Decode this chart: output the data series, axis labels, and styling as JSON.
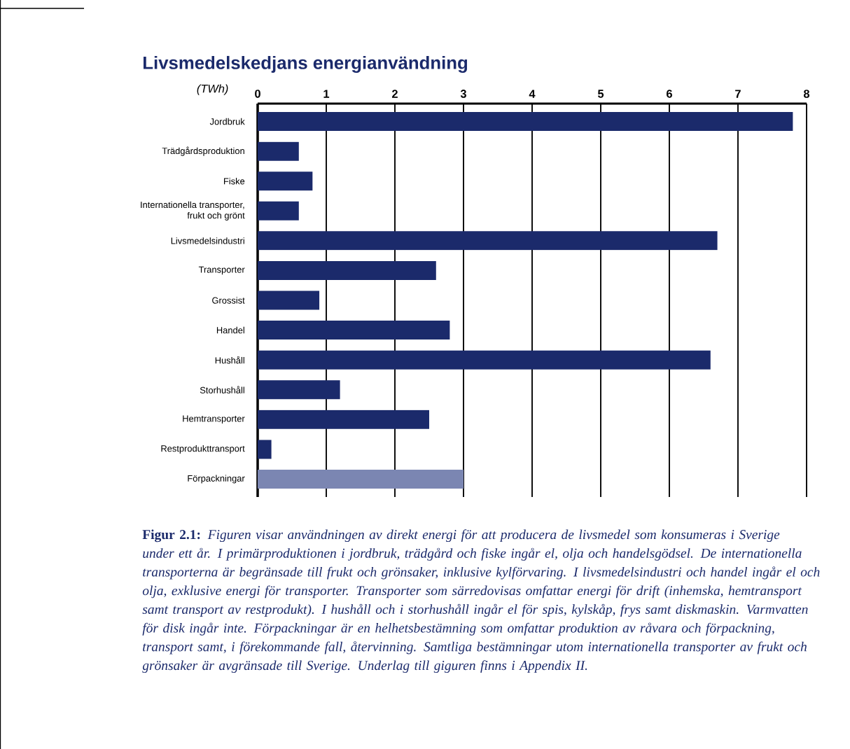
{
  "chart_data": {
    "type": "bar",
    "orientation": "horizontal",
    "title": "Livsmedelskedjans energianvändning",
    "xlabel": "(TWh)",
    "categories": [
      "Jordbruk",
      "Trädgårdsproduktion",
      "Fiske",
      "Internationella transporter, frukt och grönt",
      "Livsmedelsindustri",
      "Transporter",
      "Grossist",
      "Handel",
      "Hushåll",
      "Storhushåll",
      "Hemtransporter",
      "Restprodukttransport",
      "Förpackningar"
    ],
    "values": [
      7.8,
      0.6,
      0.8,
      0.6,
      6.7,
      2.6,
      0.9,
      2.8,
      6.6,
      1.2,
      2.5,
      0.2,
      3.0
    ],
    "colors": [
      "#1b2a6b",
      "#1b2a6b",
      "#1b2a6b",
      "#1b2a6b",
      "#1b2a6b",
      "#1b2a6b",
      "#1b2a6b",
      "#1b2a6b",
      "#1b2a6b",
      "#1b2a6b",
      "#1b2a6b",
      "#1b2a6b",
      "#7b86b2"
    ],
    "xlim": [
      0,
      8
    ],
    "xticks": [
      0,
      1,
      2,
      3,
      4,
      5,
      6,
      7,
      8
    ],
    "grid": "x",
    "annotations": [
      "**Figur 2.1:** *Figuren visar användningen av direkt energi för att producera de livsmedel som konsumeras i Sverige under ett år. I primärproduktionen i jordbruk, trädgård och fiske ingår el, olja och handelsgödsel. De internationella transporterna är begränsade till frukt och grönsaker, inklusive kylförvaring. I livsmedelsindustri och handel ingår el och olja, exklusive energi för transporter. Transporter som särredovisas omfattar energi för drift (inhemska, hemtransport samt transport av restprodukt). I hushåll och i storhushåll ingår el för spis, kylskåp, frys samt diskmaskin. Varmvatten för disk ingår inte. Förpackningar är en helhetsbestämning som omfattar produktion av råvara och förpackning, transport samt, i förekommande fall, återvinning. Samtliga bestämningar utom internationella transporter av frukt och grönsaker är avgränsade till Sverige. Underlag till giguren finns i Appendix II.*"
    ]
  }
}
